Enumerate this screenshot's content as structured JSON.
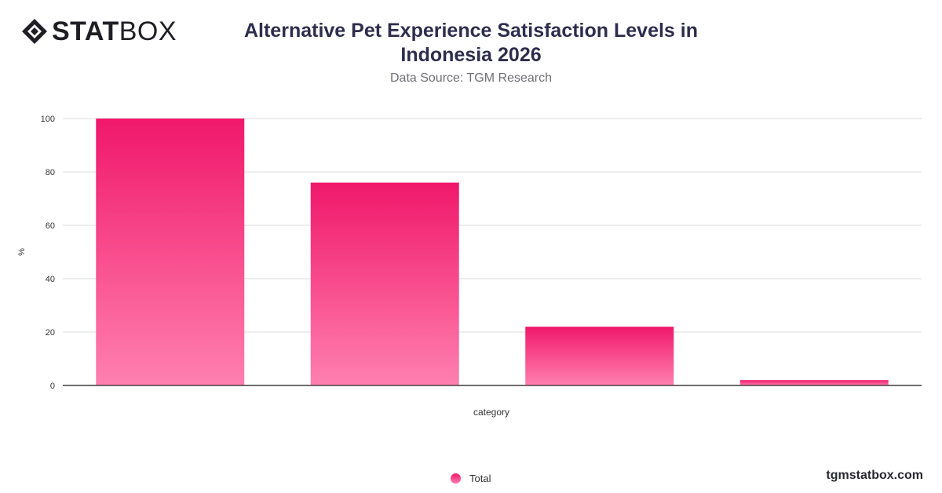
{
  "brand": {
    "logo_bold": "STAT",
    "logo_light": "BOX",
    "site": "tgmstatbox.com"
  },
  "header": {
    "title": "Alternative Pet Experience Satisfaction Levels in Indonesia 2026",
    "subtitle": "Data Source: TGM Research"
  },
  "colors": {
    "bar_top": "#f0186a",
    "bar_bottom": "#ff80b0",
    "title": "#2f2d4d"
  },
  "chart_data": {
    "type": "bar",
    "categories": [
      "",
      "",
      "",
      ""
    ],
    "series": [
      {
        "name": "Total",
        "values": [
          100,
          76,
          22,
          2
        ]
      }
    ],
    "xlabel": "category",
    "ylabel": "%",
    "ylim": [
      0,
      100
    ],
    "yticks": [
      0,
      20,
      40,
      60,
      80,
      100
    ],
    "grid": true,
    "legend": "bottom-center"
  }
}
